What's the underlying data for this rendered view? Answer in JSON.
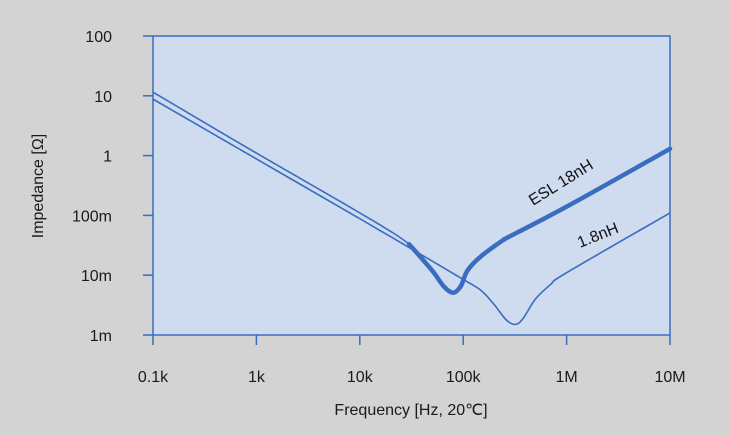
{
  "chart_data": {
    "type": "line",
    "xscale": "log",
    "yscale": "log",
    "xlim": [
      100,
      10000000
    ],
    "ylim": [
      0.001,
      100
    ],
    "xlabel": "Frequency [Hz, 20℃]",
    "ylabel": "Impedance  [Ω]",
    "x_ticks": [
      {
        "value": 100,
        "label": "0.1k"
      },
      {
        "value": 1000,
        "label": "1k"
      },
      {
        "value": 10000,
        "label": "10k"
      },
      {
        "value": 100000,
        "label": "100k"
      },
      {
        "value": 1000000,
        "label": "1M"
      },
      {
        "value": 10000000,
        "label": "10M"
      }
    ],
    "y_ticks": [
      {
        "value": 100,
        "label": "100"
      },
      {
        "value": 10,
        "label": "10"
      },
      {
        "value": 1,
        "label": "1"
      },
      {
        "value": 0.1,
        "label": "100m"
      },
      {
        "value": 0.01,
        "label": "10m"
      },
      {
        "value": 0.001,
        "label": "1m"
      }
    ],
    "grid": false,
    "colors": {
      "background": "#d3d3d3",
      "plot_background": "#cfdcef",
      "line": "#3a6cc0",
      "axis": "#3a6cc0"
    },
    "series": [
      {
        "name": "ESL 18nH",
        "emphasis": [
          [
            30000,
            0.033
          ],
          [
            250000,
            0.04
          ]
        ],
        "points": [
          [
            100,
            11.5
          ],
          [
            1000,
            1.1
          ],
          [
            10000,
            0.11
          ],
          [
            30000,
            0.033
          ],
          [
            50000,
            0.012
          ],
          [
            65000,
            0.0065
          ],
          [
            80000,
            0.0051
          ],
          [
            95000,
            0.0066
          ],
          [
            110000,
            0.012
          ],
          [
            150000,
            0.021
          ],
          [
            250000,
            0.04
          ],
          [
            1000000,
            0.14
          ],
          [
            10000000,
            1.3
          ]
        ]
      },
      {
        "name": "1.8nH",
        "emphasis": null,
        "points": [
          [
            100,
            8.8
          ],
          [
            1000,
            0.88
          ],
          [
            10000,
            0.088
          ],
          [
            30000,
            0.029
          ],
          [
            100000,
            0.0085
          ],
          [
            150000,
            0.0055
          ],
          [
            200000,
            0.0032
          ],
          [
            260000,
            0.0018
          ],
          [
            320000,
            0.0015
          ],
          [
            380000,
            0.0019
          ],
          [
            500000,
            0.004
          ],
          [
            700000,
            0.007
          ],
          [
            1000000,
            0.011
          ],
          [
            10000000,
            0.11
          ]
        ]
      }
    ]
  }
}
